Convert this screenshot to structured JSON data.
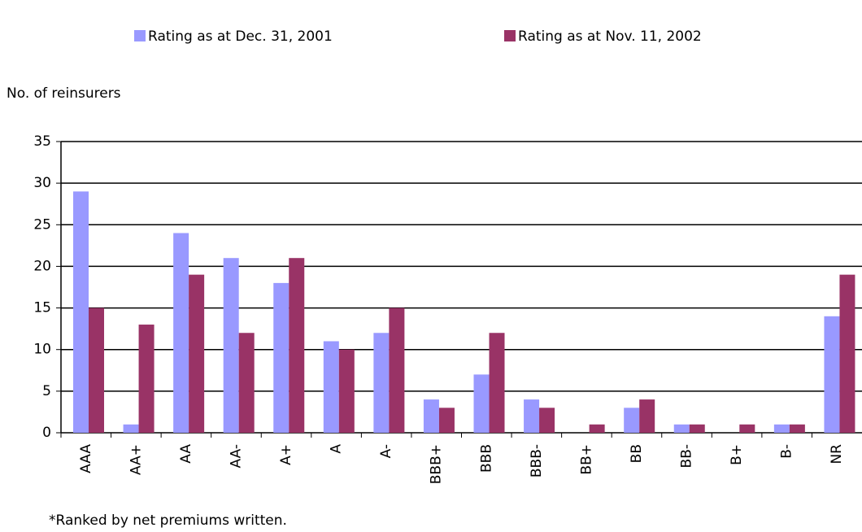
{
  "chart_data": {
    "type": "bar",
    "y_label": "No. of reinsurers",
    "note": "*Ranked by net premiums written.",
    "categories": [
      "AAA",
      "AA+",
      "AA",
      "AA-",
      "A+",
      "A",
      "A-",
      "BBB+",
      "BBB",
      "BBB-",
      "BB+",
      "BB",
      "BB-",
      "B+",
      "B-",
      "NR"
    ],
    "series": [
      {
        "name": "Rating as at Dec. 31, 2001",
        "color": "#9999ff",
        "values": [
          29,
          1,
          24,
          21,
          18,
          11,
          12,
          4,
          7,
          4,
          0,
          3,
          1,
          0,
          1,
          14
        ]
      },
      {
        "name": "Rating as at Nov. 11, 2002",
        "color": "#993366",
        "values": [
          15,
          13,
          19,
          12,
          21,
          10,
          15,
          3,
          12,
          3,
          1,
          4,
          1,
          1,
          1,
          19
        ]
      }
    ],
    "ylim": [
      0,
      35
    ],
    "yticks": [
      0,
      5,
      10,
      15,
      20,
      25,
      30,
      35
    ],
    "grid": true,
    "legend": "top"
  }
}
